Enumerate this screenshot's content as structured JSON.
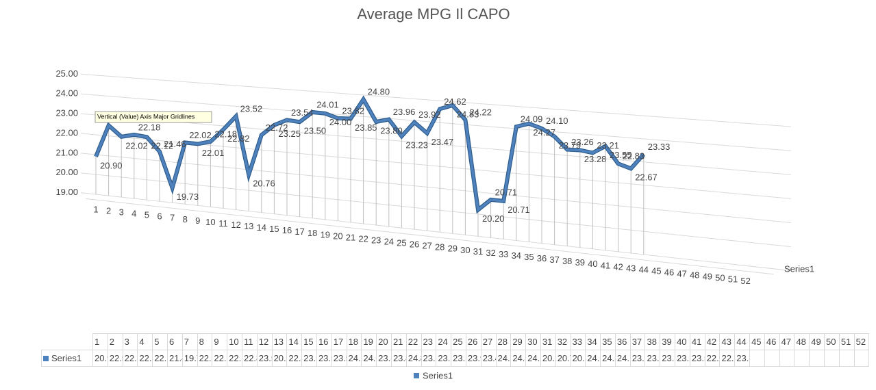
{
  "chart_data": {
    "type": "line3d",
    "title": "Average MPG Il CAPO",
    "tooltip": "Vertical (Value) Axis Major Gridlines",
    "categories": [
      "1",
      "2",
      "3",
      "4",
      "5",
      "6",
      "7",
      "8",
      "9",
      "10",
      "11",
      "12",
      "13",
      "14",
      "15",
      "16",
      "17",
      "18",
      "19",
      "20",
      "21",
      "22",
      "23",
      "24",
      "25",
      "26",
      "27",
      "28",
      "29",
      "30",
      "31",
      "32",
      "33",
      "34",
      "35",
      "36",
      "37",
      "38",
      "39",
      "40",
      "41",
      "42",
      "43",
      "44",
      "45",
      "46",
      "47",
      "48",
      "49",
      "50",
      "51",
      "52"
    ],
    "series": [
      {
        "name": "Series1",
        "color": "#4f81bd",
        "values": [
          20.9,
          22.53,
          22.02,
          22.18,
          22.12,
          21.46,
          19.73,
          22.02,
          22.01,
          22.18,
          22.82,
          23.52,
          20.76,
          22.72,
          23.25,
          23.54,
          23.5,
          24.01,
          24.0,
          23.82,
          23.85,
          24.8,
          23.8,
          23.96,
          23.23,
          23.92,
          23.47,
          24.62,
          24.83,
          24.22,
          20.2,
          20.71,
          20.71,
          24.09,
          24.27,
          24.1,
          23.79,
          23.26,
          23.28,
          23.21,
          23.55,
          22.83,
          22.67,
          23.33,
          null,
          null,
          null,
          null,
          null,
          null,
          null,
          null
        ],
        "value_labels": [
          "20.90",
          "22.53",
          "22.02",
          "22.18",
          "22.12",
          "21.46",
          "19.73",
          "22.02",
          "22.01",
          "22.18",
          "22.82",
          "23.52",
          "20.76",
          "22.72",
          "23.25",
          "23.54",
          "23.50",
          "24.01",
          "24.00",
          "23.82",
          "23.85",
          "24.80",
          "23.80",
          "23.96",
          "23.23",
          "23.92",
          "23.47",
          "24.62",
          "24.83",
          "24.22",
          "20.20",
          "20.71",
          "20.71",
          "24.09",
          "24.27",
          "24.10",
          "23.79",
          "23.26",
          "23.28",
          "23.21",
          "23.55",
          "22.83",
          "22.67",
          "23.33",
          null,
          null,
          null,
          null,
          null,
          null,
          null,
          null
        ]
      }
    ],
    "ylim": [
      19,
      25
    ],
    "yticks": [
      {
        "value": 19,
        "label": "19.00"
      },
      {
        "value": 20,
        "label": "20.00"
      },
      {
        "value": 21,
        "label": "21.00"
      },
      {
        "value": 22,
        "label": "22.00"
      },
      {
        "value": 23,
        "label": "23.00"
      },
      {
        "value": 24,
        "label": "24.00"
      },
      {
        "value": 25,
        "label": "25.00"
      }
    ],
    "grid": true,
    "legend": "bottom",
    "data_table": true
  }
}
